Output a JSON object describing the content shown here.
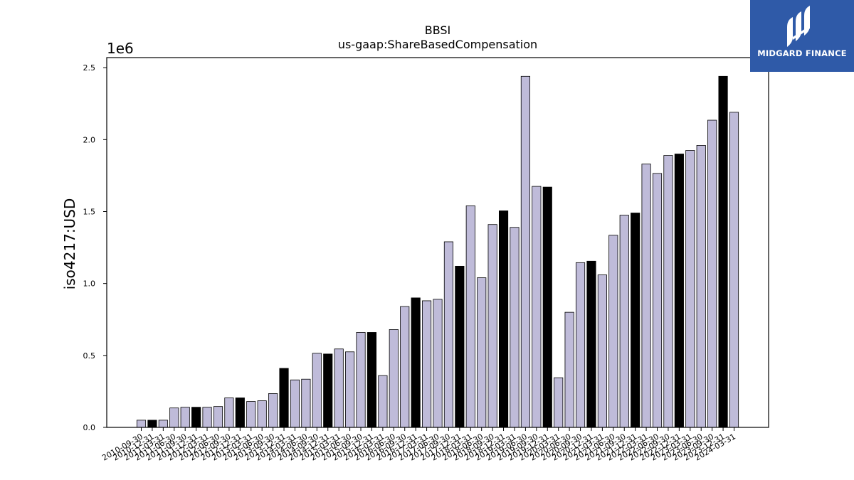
{
  "logo": {
    "text": "MIDGARD FINANCE",
    "icon": "midgard-logo-icon"
  },
  "chart_data": {
    "type": "bar",
    "title": "BBSI",
    "subtitle": "us-gaap:ShareBasedCompensation",
    "ylabel": "iso4217:USD",
    "xlabel": "",
    "y_offset_label": "1e6",
    "ylim": [
      0,
      2.57
    ],
    "yticks": [
      0.0,
      0.5,
      1.0,
      1.5,
      2.0,
      2.5
    ],
    "ytick_labels": [
      "0.0",
      "0.5",
      "1.0",
      "1.5",
      "2.0",
      "2.5"
    ],
    "grid": false,
    "legend": "none",
    "colors": {
      "regular": "#bfbbd9",
      "annual": "#000000",
      "edge": "#000000"
    },
    "categories": [
      "2010-09-30",
      "2010-12-31",
      "2011-03-31",
      "2011-06-30",
      "2011-09-30",
      "2011-12-31",
      "2012-03-31",
      "2012-06-30",
      "2012-09-30",
      "2012-12-31",
      "2013-03-31",
      "2013-06-30",
      "2013-09-30",
      "2013-12-31",
      "2014-03-31",
      "2014-06-30",
      "2014-09-30",
      "2014-12-31",
      "2015-03-31",
      "2015-06-30",
      "2015-09-30",
      "2015-12-31",
      "2016-03-31",
      "2016-06-30",
      "2016-09-30",
      "2016-12-31",
      "2017-03-31",
      "2017-06-30",
      "2017-09-30",
      "2017-12-31",
      "2018-03-31",
      "2018-06-30",
      "2018-09-30",
      "2018-12-31",
      "2019-03-31",
      "2019-06-30",
      "2019-09-30",
      "2019-12-31",
      "2020-03-31",
      "2020-06-30",
      "2020-09-30",
      "2020-12-31",
      "2021-03-31",
      "2021-06-30",
      "2021-09-30",
      "2021-12-31",
      "2022-03-31",
      "2022-06-30",
      "2022-09-30",
      "2022-12-31",
      "2023-03-31",
      "2023-06-30",
      "2023-09-30",
      "2023-12-31",
      "2024-03-31"
    ],
    "values": [
      0.05,
      0.05,
      0.05,
      0.135,
      0.14,
      0.14,
      0.14,
      0.145,
      0.205,
      0.205,
      0.18,
      0.185,
      0.235,
      0.41,
      0.33,
      0.335,
      0.515,
      0.51,
      0.545,
      0.525,
      0.66,
      0.66,
      0.36,
      0.68,
      0.84,
      0.9,
      0.88,
      0.89,
      1.29,
      1.12,
      1.54,
      1.04,
      1.41,
      1.505,
      1.39,
      2.44,
      1.675,
      1.67,
      0.345,
      0.8,
      1.145,
      1.155,
      1.06,
      1.335,
      1.475,
      1.49,
      1.83,
      1.765,
      1.89,
      1.9,
      1.925,
      1.96,
      2.135,
      2.44,
      2.19
    ],
    "annual_flags": [
      false,
      true,
      false,
      false,
      false,
      true,
      false,
      false,
      false,
      true,
      false,
      false,
      false,
      true,
      false,
      false,
      false,
      true,
      false,
      false,
      false,
      true,
      false,
      false,
      false,
      true,
      false,
      false,
      false,
      true,
      false,
      false,
      false,
      true,
      false,
      false,
      false,
      true,
      false,
      false,
      false,
      true,
      false,
      false,
      false,
      true,
      false,
      false,
      false,
      true,
      false,
      false,
      false,
      true,
      false
    ]
  }
}
